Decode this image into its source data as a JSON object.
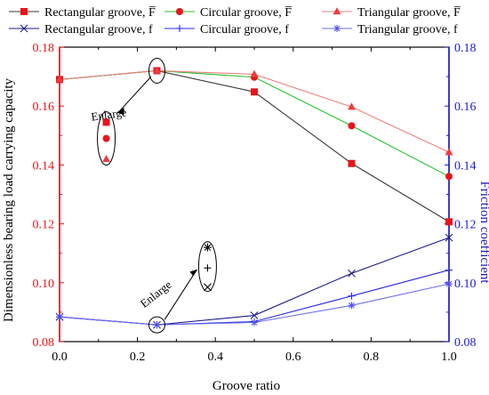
{
  "chart_data": {
    "type": "line",
    "x": [
      0.0,
      0.25,
      0.5,
      0.75,
      1.0
    ],
    "xlabel": "Groove ratio",
    "xlim": [
      0.0,
      1.0
    ],
    "x_ticks": [
      "0.0",
      "0.2",
      "0.4",
      "0.6",
      "0.8",
      "1.0"
    ],
    "ylabel_left": "Dimensionless bearing load carrying capacity",
    "ylabel_right": "Friction coefficient",
    "ylim": [
      0.08,
      0.18
    ],
    "y_ticks": [
      "0.08",
      "0.10",
      "0.12",
      "0.14",
      "0.16",
      "0.18"
    ],
    "grid": false,
    "legend_position": "top",
    "series": [
      {
        "name": "Rectangular groove, F̅",
        "axis": "left",
        "color": "#3a3a3a",
        "marker": "square",
        "marker_color": "#e8141a",
        "values": [
          0.169,
          0.172,
          0.1648,
          0.1405,
          0.1207
        ]
      },
      {
        "name": "Circular groove, F̅",
        "axis": "left",
        "color": "#22c02a",
        "marker": "circle",
        "marker_color": "#e8141a",
        "values": [
          0.169,
          0.172,
          0.1698,
          0.1533,
          0.1361
        ]
      },
      {
        "name": "Triangular groove, F̅",
        "axis": "left",
        "color": "#f08080",
        "marker": "triangle",
        "marker_color": "#f03c3c",
        "values": [
          0.169,
          0.172,
          0.1708,
          0.1597,
          0.1443
        ]
      },
      {
        "name": "Rectangular groove, f",
        "axis": "right",
        "color": "#1a1a8c",
        "marker": "x",
        "marker_color": "#1a1a8c",
        "values": [
          0.0884,
          0.0857,
          0.0889,
          0.1032,
          0.1153
        ]
      },
      {
        "name": "Circular groove, f",
        "axis": "right",
        "color": "#2a2ae0",
        "marker": "plus",
        "marker_color": "#2a2ae0",
        "values": [
          0.0884,
          0.0857,
          0.0868,
          0.0955,
          0.1043
        ]
      },
      {
        "name": "Triangular groove, f",
        "axis": "right",
        "color": "#6c6cf2",
        "marker": "asterisk",
        "marker_color": "#5050ee",
        "values": [
          0.0884,
          0.0857,
          0.0865,
          0.0923,
          0.0996
        ]
      }
    ],
    "annotations": [
      {
        "text": "Enlarge"
      },
      {
        "text": "Enlarge"
      }
    ],
    "colors": {
      "left_axis": "#e8141a",
      "right_axis": "#1a1acc",
      "frame": "#000000"
    }
  }
}
